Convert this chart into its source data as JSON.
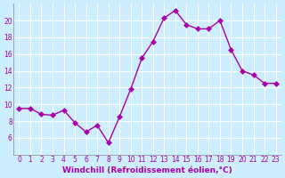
{
  "x": [
    0,
    1,
    2,
    3,
    4,
    5,
    6,
    7,
    8,
    9,
    10,
    11,
    12,
    13,
    14,
    15,
    16,
    17,
    18,
    19,
    20,
    21,
    22,
    23
  ],
  "y": [
    9.5,
    9.5,
    8.8,
    8.7,
    9.3,
    7.8,
    6.7,
    7.5,
    5.4,
    8.5,
    11.8,
    15.5,
    17.5,
    20.3,
    21.2,
    19.5,
    19.0,
    19.0,
    20.0,
    16.5,
    14.0,
    13.5,
    12.5,
    12.5
  ],
  "line_color": "#aa00aa",
  "marker": "D",
  "marker_size": 3,
  "bg_color": "#cceeff",
  "grid_color": "#ffffff",
  "xlabel": "Windchill (Refroidissement éolien,°C)",
  "xlabel_color": "#aa00aa",
  "tick_color": "#aa00aa",
  "ylim": [
    4,
    22
  ],
  "yticks": [
    6,
    8,
    10,
    12,
    14,
    16,
    18,
    20
  ],
  "xticks": [
    0,
    1,
    2,
    3,
    4,
    5,
    6,
    7,
    8,
    9,
    10,
    11,
    12,
    13,
    14,
    15,
    16,
    17,
    18,
    19,
    20,
    21,
    22,
    23
  ],
  "xlim": [
    -0.5,
    23.5
  ]
}
